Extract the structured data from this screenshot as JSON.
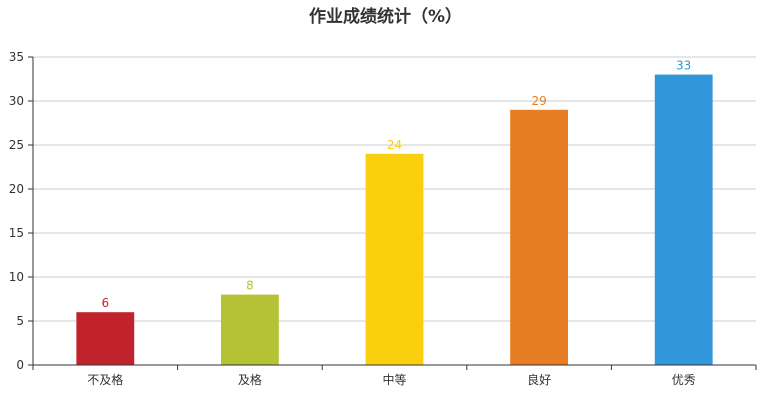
{
  "chart_data": {
    "type": "bar",
    "title": "作业成绩统计（%）",
    "categories": [
      "不及格",
      "及格",
      "中等",
      "良好",
      "优秀"
    ],
    "values": [
      6,
      8,
      24,
      29,
      33
    ],
    "bar_colors": [
      "#c0232b",
      "#b6c236",
      "#fad00e",
      "#e77d23",
      "#3297da"
    ],
    "ylim": [
      0,
      35
    ],
    "yticks": [
      0,
      5,
      10,
      15,
      20,
      25,
      30,
      35
    ],
    "grid": true,
    "legend": "none",
    "data_labels": true,
    "xlabel": "",
    "ylabel": ""
  },
  "colors": {
    "axis": "#333333",
    "grid": "#cccccc",
    "tick_text": "#333333"
  }
}
